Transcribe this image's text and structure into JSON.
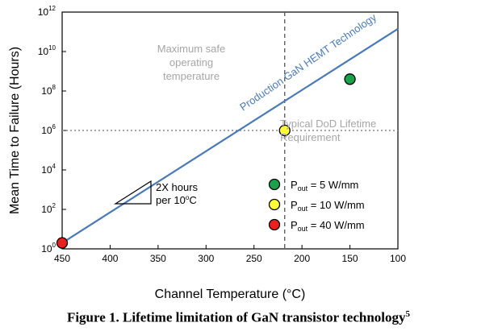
{
  "chart_data": {
    "type": "line",
    "xlabel": "Channel Temperature (°C)",
    "ylabel": "Mean Time to Failure (Hours)",
    "xlim": [
      450,
      100
    ],
    "ylim_log10": [
      0,
      12
    ],
    "y_scale": "log",
    "x_ticks": [
      450,
      400,
      350,
      300,
      250,
      200,
      150,
      100
    ],
    "y_ticks": [
      {
        "exp": "0",
        "value": 1
      },
      {
        "exp": "2",
        "value": 100
      },
      {
        "exp": "4",
        "value": 10000
      },
      {
        "exp": "6",
        "value": 1000000
      },
      {
        "exp": "8",
        "value": 100000000
      },
      {
        "exp": "10",
        "value": 10000000000
      },
      {
        "exp": "12",
        "value": 1000000000000
      }
    ],
    "series": [
      {
        "name": "Production GaN HEMT Technology",
        "color": "#4a7ab5",
        "x": [
          450,
          100
        ],
        "log10_y": [
          0.3,
          11.15
        ]
      }
    ],
    "points": [
      {
        "label": "Pout = 5 W/mm",
        "x": 150,
        "log10_y": 8.6,
        "color": "#1aa24a"
      },
      {
        "label": "Pout = 10 W/mm",
        "x": 218,
        "log10_y": 6.0,
        "color": "#ffff33"
      },
      {
        "label": "Pout = 40 W/mm",
        "x": 450,
        "log10_y": 0.3,
        "color": "#e8221c"
      }
    ],
    "reference_lines": {
      "vertical_x": 218,
      "horizontal_log10_y": 6
    },
    "annotations": {
      "max_safe": [
        "Maximum safe",
        "operating",
        "temperature"
      ],
      "dod": [
        "Typical DoD Lifetime",
        "Requirement"
      ],
      "line_label": "Production GaN HEMT Technology",
      "slope": [
        "2X hours",
        "per 10",
        "o",
        "C"
      ]
    },
    "legend": [
      {
        "sub": "out",
        "value": " = 5 W/mm",
        "color": "#1aa24a"
      },
      {
        "sub": "out",
        "value": " = 10 W/mm",
        "color": "#ffff33"
      },
      {
        "sub": "out",
        "value": " = 40 W/mm",
        "color": "#e8221c"
      }
    ]
  },
  "caption": {
    "text": "Figure 1. Lifetime limitation of GaN transistor technology",
    "superscript": "5"
  }
}
